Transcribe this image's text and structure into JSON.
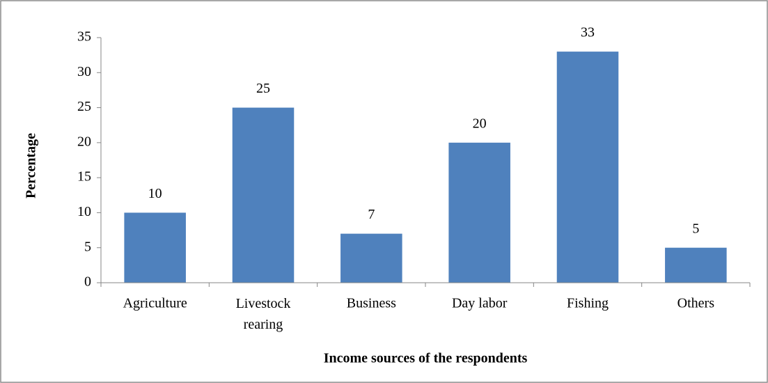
{
  "chart_data": {
    "type": "bar",
    "x_label": "Income sources of the respondents",
    "y_label": "Percentage",
    "categories": [
      "Agriculture",
      "Livestock rearing",
      "Business",
      "Day labor",
      "Fishing",
      "Others"
    ],
    "values": [
      10,
      25,
      7,
      20,
      33,
      5
    ],
    "color": "#4f81bd",
    "ylim": [
      0,
      35
    ],
    "yticks": [
      0,
      5,
      10,
      15,
      20,
      25,
      30,
      35
    ],
    "grid": false
  }
}
